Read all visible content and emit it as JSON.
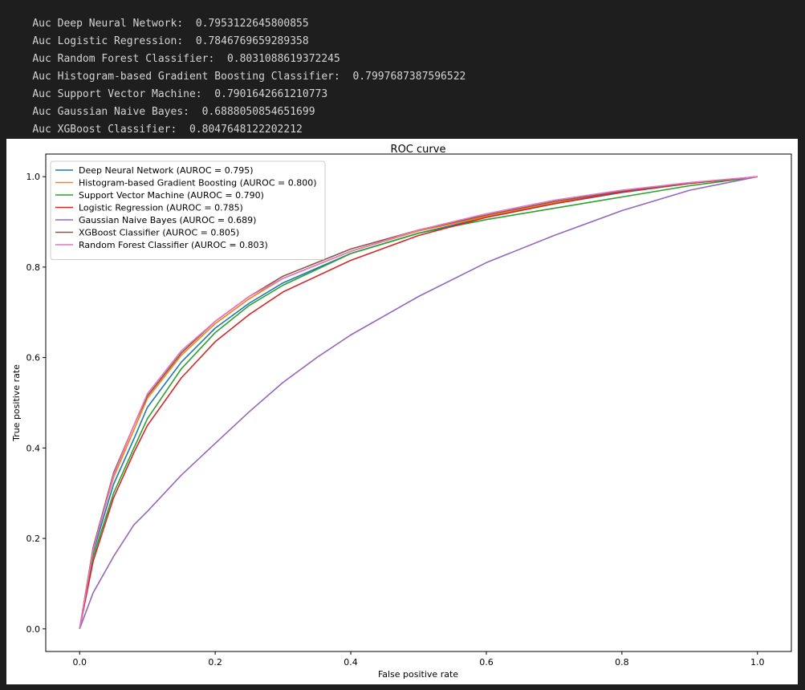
{
  "console_output": [
    {
      "label": "Auc Deep Neural Network:",
      "value": "0.7953122645800855"
    },
    {
      "label": "Auc Logistic Regression:",
      "value": "0.7846769659289358"
    },
    {
      "label": "Auc Random Forest Classifier:",
      "value": "0.8031088619372245"
    },
    {
      "label": "Auc Histogram-based Gradient Boosting Classifier:",
      "value": "0.7997687387596522"
    },
    {
      "label": "Auc Support Vector Machine:",
      "value": "0.7901642661210773"
    },
    {
      "label": "Auc Gaussian Naive Bayes:",
      "value": "0.6888050854651699"
    },
    {
      "label": "Auc XGBoost Classifier:",
      "value": "0.8047648122202212"
    }
  ],
  "chart_data": {
    "type": "line",
    "title": "ROC curve",
    "xlabel": "False positive rate",
    "ylabel": "True positive rate",
    "xlim": [
      -0.05,
      1.05
    ],
    "ylim": [
      -0.05,
      1.05
    ],
    "xticks": [
      0.0,
      0.2,
      0.4,
      0.6,
      0.8,
      1.0
    ],
    "yticks": [
      0.0,
      0.2,
      0.4,
      0.6,
      0.8,
      1.0
    ],
    "xtick_labels": [
      "0.0",
      "0.2",
      "0.4",
      "0.6",
      "0.8",
      "1.0"
    ],
    "ytick_labels": [
      "0.0",
      "0.2",
      "0.4",
      "0.6",
      "0.8",
      "1.0"
    ],
    "grid": false,
    "legend_position": "upper-left",
    "series": [
      {
        "name": "Deep Neural Network (AUROC = 0.795)",
        "color": "#1f77b4",
        "x": [
          0,
          0.02,
          0.05,
          0.08,
          0.1,
          0.15,
          0.2,
          0.25,
          0.3,
          0.4,
          0.5,
          0.6,
          0.7,
          0.8,
          0.9,
          1.0
        ],
        "y": [
          0,
          0.17,
          0.32,
          0.42,
          0.49,
          0.59,
          0.665,
          0.72,
          0.765,
          0.83,
          0.875,
          0.91,
          0.94,
          0.965,
          0.985,
          1.0
        ]
      },
      {
        "name": "Histogram-based Gradient Boosting (AUROC = 0.800)",
        "color": "#ff7f0e",
        "x": [
          0,
          0.02,
          0.05,
          0.08,
          0.1,
          0.15,
          0.2,
          0.25,
          0.3,
          0.4,
          0.5,
          0.6,
          0.7,
          0.8,
          0.9,
          1.0
        ],
        "y": [
          0,
          0.18,
          0.335,
          0.44,
          0.51,
          0.605,
          0.675,
          0.73,
          0.775,
          0.835,
          0.88,
          0.912,
          0.942,
          0.966,
          0.985,
          1.0
        ]
      },
      {
        "name": "Support Vector Machine (AUROC = 0.790)",
        "color": "#2ca02c",
        "x": [
          0,
          0.02,
          0.05,
          0.08,
          0.1,
          0.15,
          0.2,
          0.25,
          0.3,
          0.4,
          0.5,
          0.6,
          0.7,
          0.8,
          0.9,
          1.0
        ],
        "y": [
          0,
          0.16,
          0.3,
          0.4,
          0.465,
          0.575,
          0.655,
          0.715,
          0.76,
          0.83,
          0.875,
          0.905,
          0.93,
          0.955,
          0.98,
          1.0
        ]
      },
      {
        "name": "Logistic Regression (AUROC = 0.785)",
        "color": "#d62728",
        "x": [
          0,
          0.02,
          0.05,
          0.08,
          0.1,
          0.15,
          0.2,
          0.25,
          0.3,
          0.4,
          0.5,
          0.6,
          0.7,
          0.8,
          0.9,
          1.0
        ],
        "y": [
          0,
          0.15,
          0.29,
          0.39,
          0.45,
          0.555,
          0.635,
          0.695,
          0.745,
          0.815,
          0.87,
          0.91,
          0.94,
          0.966,
          0.985,
          1.0
        ]
      },
      {
        "name": "Gaussian Naive Bayes (AUROC = 0.689)",
        "color": "#9467bd",
        "x": [
          0,
          0.02,
          0.05,
          0.08,
          0.1,
          0.15,
          0.2,
          0.25,
          0.3,
          0.35,
          0.4,
          0.5,
          0.6,
          0.7,
          0.8,
          0.9,
          1.0
        ],
        "y": [
          0,
          0.08,
          0.16,
          0.23,
          0.26,
          0.34,
          0.41,
          0.48,
          0.545,
          0.6,
          0.65,
          0.735,
          0.81,
          0.87,
          0.925,
          0.97,
          1.0
        ]
      },
      {
        "name": "XGBoost Classifier (AUROC = 0.805)",
        "color": "#8c564b",
        "x": [
          0,
          0.02,
          0.05,
          0.08,
          0.1,
          0.15,
          0.2,
          0.25,
          0.3,
          0.4,
          0.5,
          0.6,
          0.7,
          0.8,
          0.9,
          1.0
        ],
        "y": [
          0,
          0.18,
          0.345,
          0.45,
          0.515,
          0.61,
          0.68,
          0.735,
          0.78,
          0.84,
          0.882,
          0.915,
          0.945,
          0.968,
          0.986,
          1.0
        ]
      },
      {
        "name": "Random Forest Classifier (AUROC = 0.803)",
        "color": "#e377c2",
        "x": [
          0,
          0.02,
          0.05,
          0.08,
          0.1,
          0.15,
          0.2,
          0.25,
          0.3,
          0.4,
          0.5,
          0.6,
          0.7,
          0.8,
          0.9,
          1.0
        ],
        "y": [
          0,
          0.175,
          0.34,
          0.45,
          0.52,
          0.615,
          0.68,
          0.735,
          0.775,
          0.835,
          0.882,
          0.918,
          0.948,
          0.97,
          0.987,
          1.0
        ]
      }
    ]
  }
}
